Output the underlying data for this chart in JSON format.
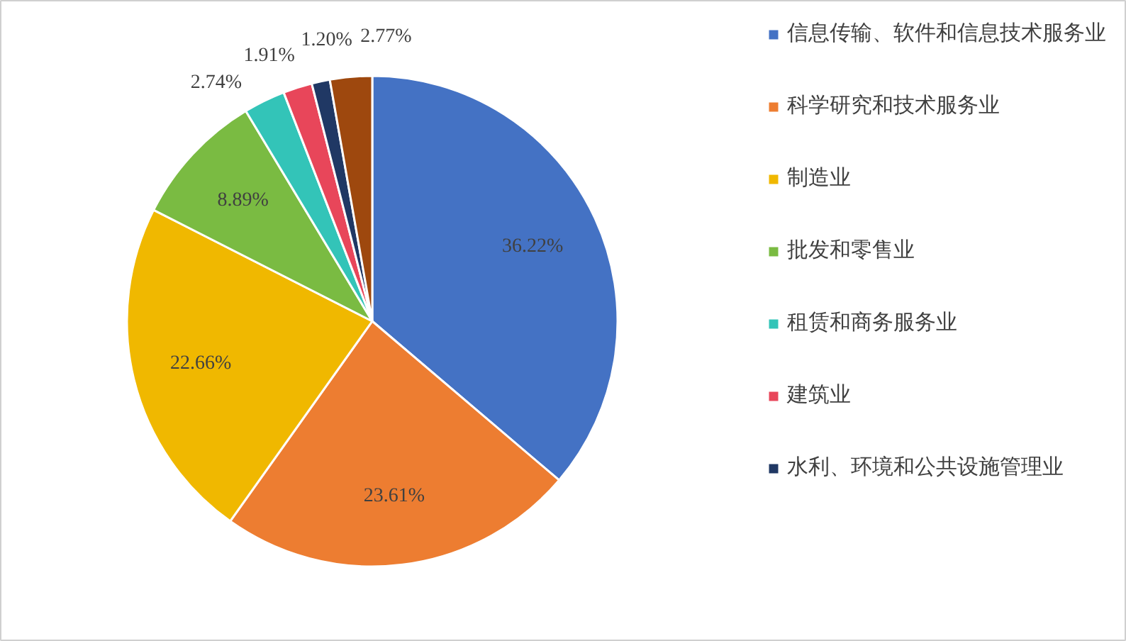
{
  "chart_data": {
    "type": "pie",
    "categories": [
      "信息传输、软件和信息技术服务业",
      "科学研究和技术服务业",
      "制造业",
      "批发和零售业",
      "租赁和商务服务业",
      "建筑业",
      "水利、环境和公共设施管理业",
      null
    ],
    "values": [
      36.22,
      23.61,
      22.66,
      8.89,
      2.74,
      1.91,
      1.2,
      2.77
    ],
    "colors": [
      "#4472c4",
      "#ed7d31",
      "#f0b800",
      "#7abb42",
      "#33c4b8",
      "#e8465a",
      "#203864",
      "#9e480e"
    ],
    "value_labels": [
      "36.22%",
      "23.61%",
      "22.66%",
      "8.89%",
      "2.74%",
      "1.91%",
      "1.20%",
      "2.77%"
    ],
    "legend": "right"
  }
}
